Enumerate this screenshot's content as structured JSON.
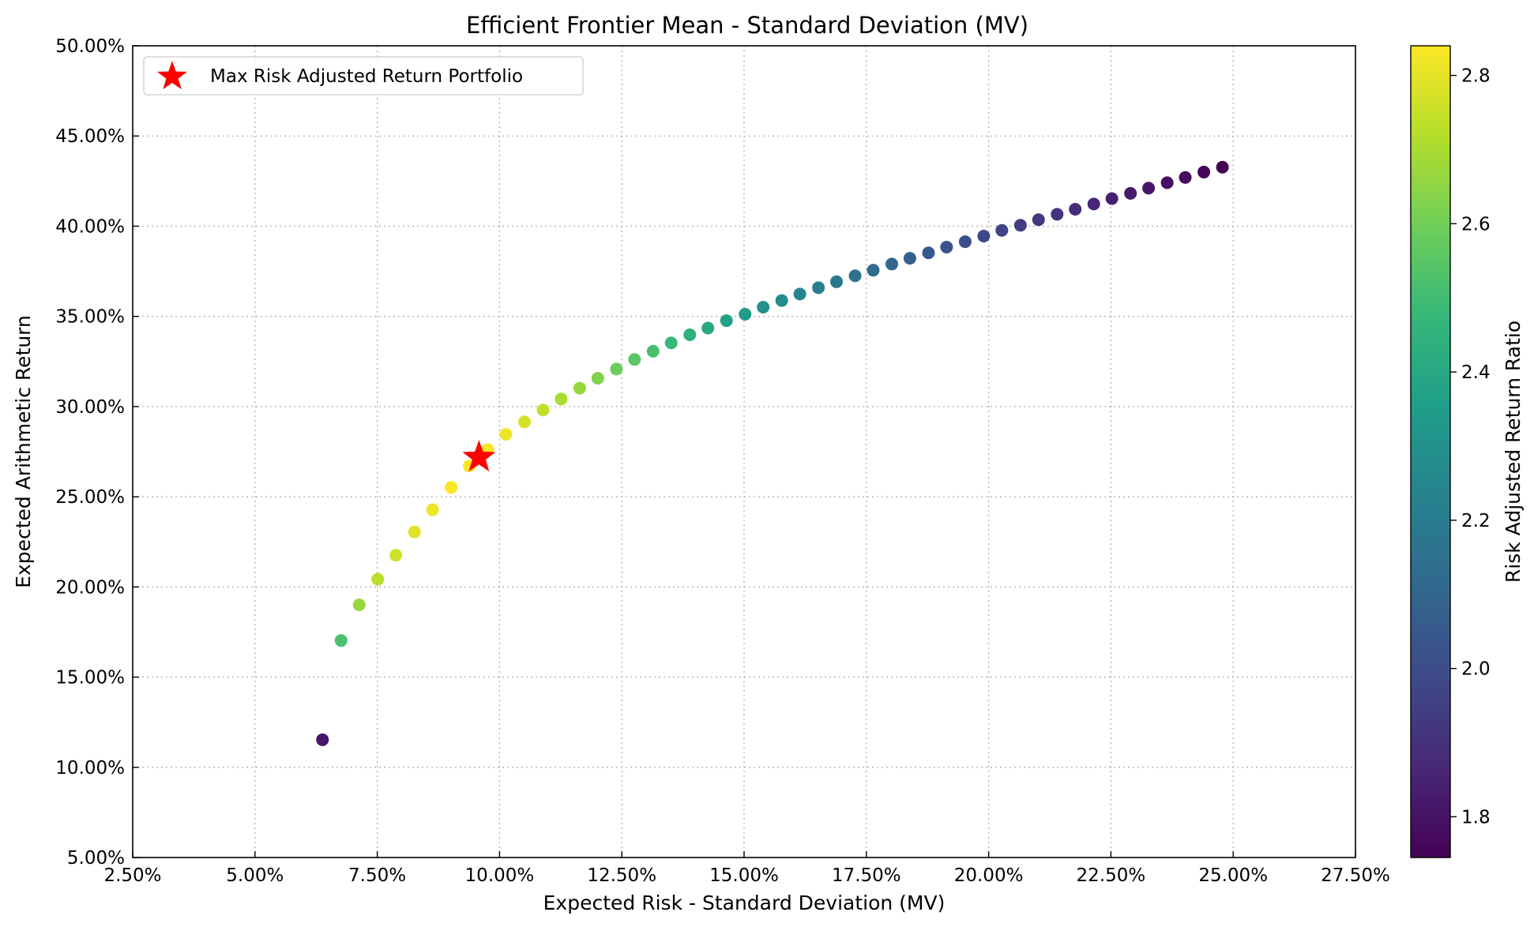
{
  "chart_data": {
    "type": "scatter",
    "title": "Efficient Frontier Mean - Standard Deviation (MV)",
    "xlabel": "Expected Risk - Standard Deviation (MV)",
    "ylabel": "Expected Arithmetic Return",
    "xlim": [
      0.025,
      0.275
    ],
    "ylim": [
      0.05,
      0.5
    ],
    "x_ticks": [
      "2.50%",
      "5.00%",
      "7.50%",
      "10.00%",
      "12.50%",
      "15.00%",
      "17.50%",
      "20.00%",
      "22.50%",
      "25.00%",
      "27.50%"
    ],
    "y_ticks": [
      "5.00%",
      "10.00%",
      "15.00%",
      "20.00%",
      "25.00%",
      "30.00%",
      "35.00%",
      "40.00%",
      "45.00%",
      "50.00%"
    ],
    "grid": true,
    "legend_placement": "top-left",
    "legend_entries": [
      "Max Risk Adjusted Return Portfolio"
    ],
    "colorbar": {
      "label": "Risk Adjusted Return Ratio",
      "range": [
        1.745,
        2.84
      ],
      "ticks": [
        "1.8",
        "2.0",
        "2.2",
        "2.4",
        "2.6",
        "2.8"
      ],
      "colormap": "viridis"
    },
    "marker_color": "#ff0000",
    "points": [
      {
        "x": 0.0638,
        "y": 0.1153
      },
      {
        "x": 0.0676,
        "y": 0.1703
      },
      {
        "x": 0.0713,
        "y": 0.1901
      },
      {
        "x": 0.0751,
        "y": 0.2043
      },
      {
        "x": 0.0788,
        "y": 0.2176
      },
      {
        "x": 0.0826,
        "y": 0.2305
      },
      {
        "x": 0.0863,
        "y": 0.2428
      },
      {
        "x": 0.0901,
        "y": 0.2552
      },
      {
        "x": 0.0938,
        "y": 0.2671
      },
      {
        "x": 0.0976,
        "y": 0.2762
      },
      {
        "x": 0.1013,
        "y": 0.2846
      },
      {
        "x": 0.1051,
        "y": 0.2915
      },
      {
        "x": 0.1089,
        "y": 0.2981
      },
      {
        "x": 0.1126,
        "y": 0.3042
      },
      {
        "x": 0.1164,
        "y": 0.3102
      },
      {
        "x": 0.1201,
        "y": 0.3157
      },
      {
        "x": 0.1239,
        "y": 0.3208
      },
      {
        "x": 0.1276,
        "y": 0.3261
      },
      {
        "x": 0.1314,
        "y": 0.3307
      },
      {
        "x": 0.1351,
        "y": 0.3353
      },
      {
        "x": 0.1389,
        "y": 0.3398
      },
      {
        "x": 0.1426,
        "y": 0.3435
      },
      {
        "x": 0.1464,
        "y": 0.3476
      },
      {
        "x": 0.1502,
        "y": 0.3512
      },
      {
        "x": 0.1539,
        "y": 0.3551
      },
      {
        "x": 0.1577,
        "y": 0.3588
      },
      {
        "x": 0.1614,
        "y": 0.3624
      },
      {
        "x": 0.1652,
        "y": 0.3659
      },
      {
        "x": 0.1689,
        "y": 0.3692
      },
      {
        "x": 0.1727,
        "y": 0.3725
      },
      {
        "x": 0.1764,
        "y": 0.3756
      },
      {
        "x": 0.1802,
        "y": 0.379
      },
      {
        "x": 0.1839,
        "y": 0.3822
      },
      {
        "x": 0.1877,
        "y": 0.3852
      },
      {
        "x": 0.1914,
        "y": 0.3884
      },
      {
        "x": 0.1952,
        "y": 0.3914
      },
      {
        "x": 0.199,
        "y": 0.3945
      },
      {
        "x": 0.2027,
        "y": 0.3977
      },
      {
        "x": 0.2065,
        "y": 0.4005
      },
      {
        "x": 0.2102,
        "y": 0.4036
      },
      {
        "x": 0.214,
        "y": 0.4066
      },
      {
        "x": 0.2177,
        "y": 0.4094
      },
      {
        "x": 0.2215,
        "y": 0.4123
      },
      {
        "x": 0.2252,
        "y": 0.4153
      },
      {
        "x": 0.229,
        "y": 0.4182
      },
      {
        "x": 0.2327,
        "y": 0.4211
      },
      {
        "x": 0.2365,
        "y": 0.4241
      },
      {
        "x": 0.2402,
        "y": 0.427
      },
      {
        "x": 0.244,
        "y": 0.43
      },
      {
        "x": 0.2478,
        "y": 0.4327
      }
    ],
    "optimal_point": {
      "x": 0.0958,
      "y": 0.2718
    }
  }
}
